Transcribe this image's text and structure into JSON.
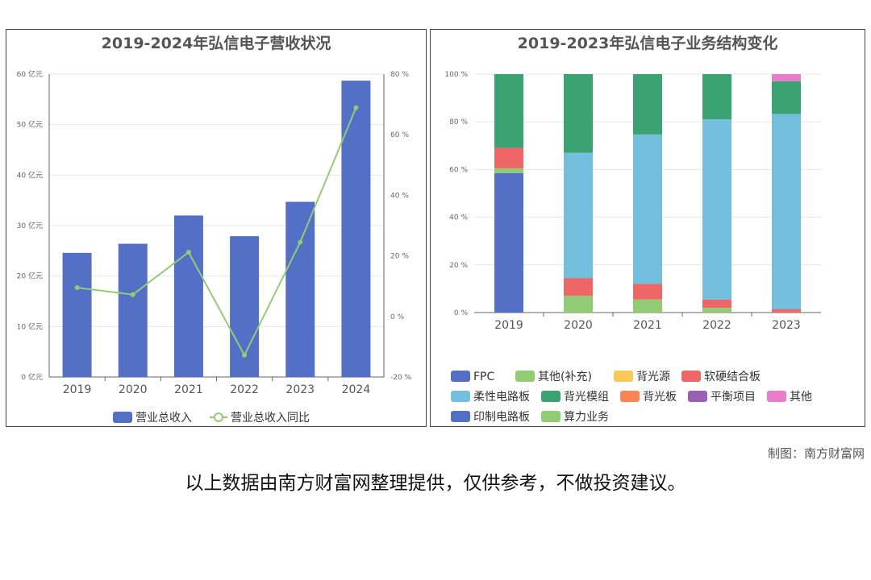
{
  "credit": "制图：南方财富网",
  "disclaimer": "以上数据由南方财富网整理提供，仅供参考，不做投资建议。",
  "chart_data": [
    {
      "type": "bar",
      "title": "2019-2024年弘信电子营收状况",
      "categories": [
        "2019",
        "2020",
        "2021",
        "2022",
        "2023",
        "2024"
      ],
      "series": [
        {
          "name": "营业总收入",
          "type": "bar",
          "axis": "left",
          "color": "#5470c6",
          "values": [
            24.6,
            26.4,
            32.0,
            27.9,
            34.7,
            58.7
          ]
        },
        {
          "name": "营业总收入同比",
          "type": "line",
          "axis": "right",
          "color": "#91cc75",
          "values": [
            9.5,
            7.2,
            21.2,
            -12.8,
            24.5,
            68.9
          ]
        }
      ],
      "y_left": {
        "min": 0,
        "max": 60,
        "step": 10,
        "unit": "亿元",
        "ticks": [
          "0 亿元",
          "10 亿元",
          "20 亿元",
          "30 亿元",
          "40 亿元",
          "50 亿元",
          "60 亿元"
        ]
      },
      "y_right": {
        "min": -20,
        "max": 80,
        "step": 20,
        "unit": "%",
        "ticks": [
          "-20 %",
          "0 %",
          "20 %",
          "40 %",
          "60 %",
          "80 %"
        ]
      },
      "grid": true,
      "legend_position": "bottom"
    },
    {
      "type": "bar",
      "stacked": true,
      "title": "2019-2023年弘信电子业务结构变化",
      "categories": [
        "2019",
        "2020",
        "2021",
        "2022",
        "2023"
      ],
      "y_ticks": [
        "0 %",
        "20 %",
        "40 %",
        "60 %",
        "80 %",
        "100 %"
      ],
      "ylim": [
        0,
        100
      ],
      "grid": true,
      "legend_position": "bottom",
      "series": [
        {
          "name": "FPC",
          "color": "#5470c6",
          "values": [
            58.5,
            0,
            0,
            0,
            0
          ]
        },
        {
          "name": "其他(补充)",
          "color": "#91cc75",
          "values": [
            2.0,
            7.0,
            5.5,
            2.0,
            0
          ]
        },
        {
          "name": "背光源",
          "color": "#fac858",
          "values": [
            0,
            0,
            0,
            0,
            0
          ]
        },
        {
          "name": "软硬结合板",
          "color": "#ee6666",
          "values": [
            8.5,
            7.5,
            6.5,
            3.5,
            1.5
          ]
        },
        {
          "name": "柔性电路板",
          "color": "#73c0de",
          "values": [
            0,
            52.5,
            62.7,
            75.5,
            81.8
          ]
        },
        {
          "name": "背光模组",
          "color": "#3ba272",
          "values": [
            31.0,
            33.0,
            25.3,
            19.0,
            13.7
          ]
        },
        {
          "name": "背光板",
          "color": "#fc8452",
          "values": [
            0,
            0,
            0,
            0,
            0
          ]
        },
        {
          "name": "平衡项目",
          "color": "#9a60b4",
          "values": [
            0,
            0,
            0,
            0,
            0
          ]
        },
        {
          "name": "其他",
          "color": "#ea7ccc",
          "values": [
            0,
            0,
            0,
            0,
            3.0
          ]
        },
        {
          "name": "印制电路板",
          "color": "#5470c6",
          "values": [
            0,
            0,
            0,
            0,
            0
          ]
        },
        {
          "name": "算力业务",
          "color": "#91cc75",
          "values": [
            0,
            0,
            0,
            0,
            0
          ]
        }
      ]
    }
  ]
}
